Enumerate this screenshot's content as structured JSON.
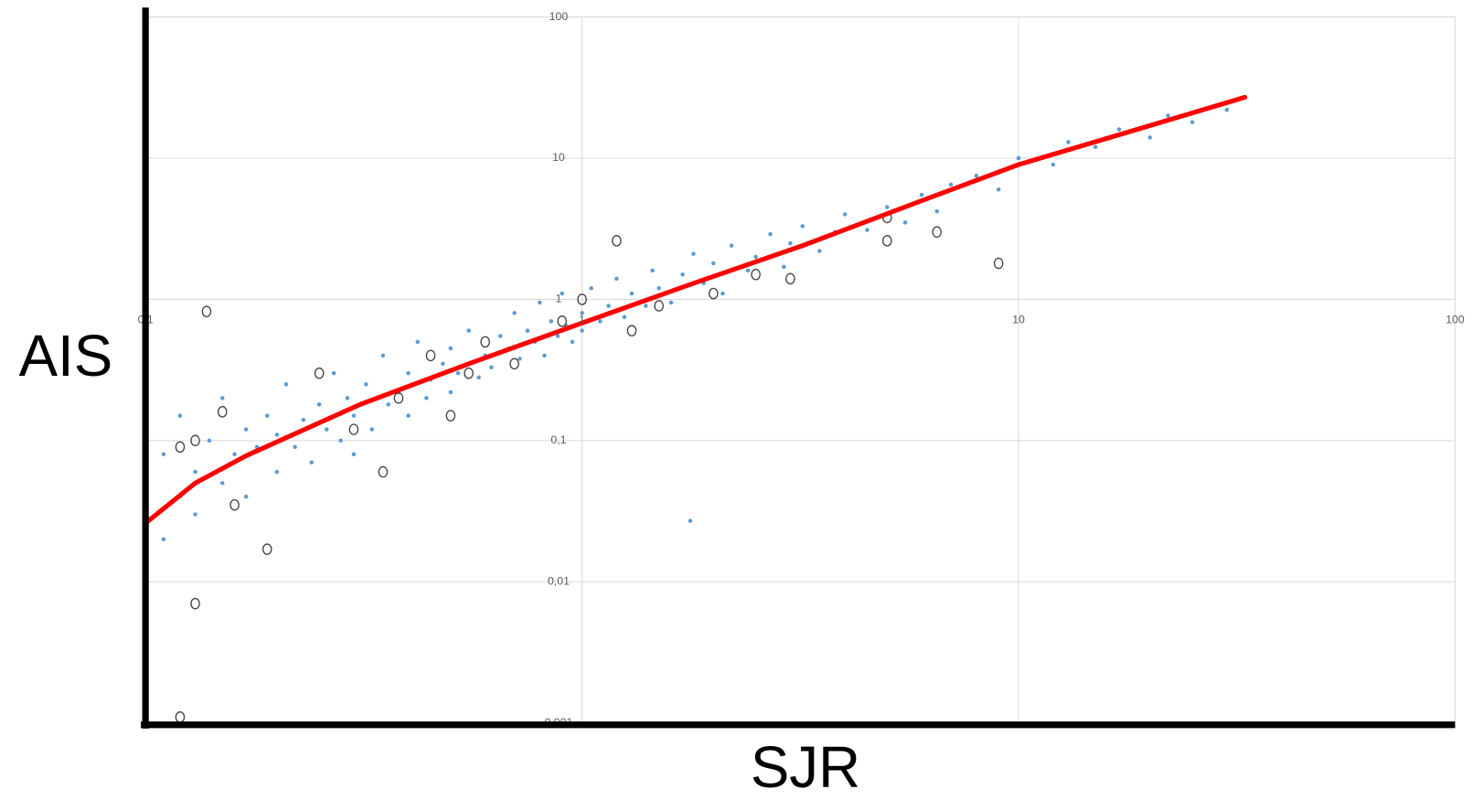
{
  "chart_data": {
    "type": "scatter",
    "x_label": "SJR",
    "y_label": "AIS",
    "xscale": "log",
    "yscale": "log",
    "grid": true,
    "axis_crossing": [
      1,
      1
    ],
    "xlim": [
      0.1,
      100
    ],
    "ylim": [
      0.001,
      100
    ],
    "xticks": [
      {
        "value": 0.1,
        "label": "0,1"
      },
      1,
      10,
      100
    ],
    "yticks": [
      {
        "value": 0.001,
        "label": "0,001"
      },
      {
        "value": 0.01,
        "label": "0,01"
      },
      {
        "value": 0.1,
        "label": "0,1"
      },
      1,
      10,
      100
    ],
    "series": [
      {
        "kind": "points",
        "color": "#5b9bd5",
        "x": [
          0.1,
          0.1,
          0.1,
          0.11,
          0.11,
          0.12,
          0.12,
          0.13,
          0.13,
          0.14,
          0.15,
          0.15,
          0.16,
          0.17,
          0.17,
          0.18,
          0.19,
          0.2,
          0.2,
          0.21,
          0.22,
          0.23,
          0.24,
          0.25,
          0.26,
          0.27,
          0.28,
          0.29,
          0.3,
          0.3,
          0.32,
          0.33,
          0.35,
          0.36,
          0.38,
          0.4,
          0.4,
          0.42,
          0.44,
          0.45,
          0.48,
          0.5,
          0.5,
          0.52,
          0.55,
          0.58,
          0.6,
          0.62,
          0.65,
          0.68,
          0.7,
          0.72,
          0.75,
          0.78,
          0.8,
          0.82,
          0.85,
          0.88,
          0.9,
          0.92,
          0.95,
          1,
          1,
          1.05,
          1.1,
          1.15,
          1.2,
          1.25,
          1.3,
          1.4,
          1.45,
          1.5,
          1.6,
          1.7,
          1.8,
          1.9,
          2,
          2.1,
          2.2,
          2.4,
          2.5,
          2.7,
          2.9,
          3,
          3.2,
          3.5,
          3.8,
          4,
          4.5,
          5,
          5.5,
          6,
          6.5,
          7,
          8,
          9,
          10,
          12,
          13,
          15,
          17,
          20,
          22,
          25,
          30,
          1.77,
          0.1
        ],
        "values": [
          0.03,
          0.012,
          0.05,
          0.02,
          0.08,
          0.04,
          0.15,
          0.03,
          0.06,
          0.1,
          0.05,
          0.2,
          0.08,
          0.12,
          0.04,
          0.09,
          0.15,
          0.06,
          0.11,
          0.25,
          0.09,
          0.14,
          0.07,
          0.18,
          0.12,
          0.3,
          0.1,
          0.2,
          0.15,
          0.08,
          0.25,
          0.12,
          0.4,
          0.18,
          0.22,
          0.15,
          0.3,
          0.5,
          0.2,
          0.27,
          0.35,
          0.22,
          0.45,
          0.3,
          0.6,
          0.28,
          0.4,
          0.33,
          0.55,
          0.45,
          0.8,
          0.38,
          0.6,
          0.5,
          0.95,
          0.4,
          0.7,
          0.55,
          1.1,
          0.65,
          0.5,
          0.8,
          0.6,
          1.2,
          0.7,
          0.9,
          1.4,
          0.75,
          1.1,
          0.9,
          1.6,
          1.2,
          0.95,
          1.5,
          2.1,
          1.3,
          1.8,
          1.1,
          2.4,
          1.6,
          2,
          2.9,
          1.7,
          2.5,
          3.3,
          2.2,
          3,
          4,
          3.1,
          4.5,
          3.5,
          5.5,
          4.2,
          6.5,
          7.5,
          6,
          10,
          9,
          13,
          12,
          16,
          14,
          20,
          18,
          22,
          0.027,
          0.003
        ]
      },
      {
        "kind": "hollow",
        "color": "#404040",
        "x": [
          0.138,
          0.12,
          0.13,
          0.15,
          0.16,
          0.19,
          0.13,
          0.12,
          0.25,
          0.3,
          0.38,
          0.45,
          0.55,
          0.6,
          0.7,
          0.9,
          1,
          1.3,
          1.5,
          2,
          2.5,
          3,
          5,
          6.5,
          9,
          5,
          1.2,
          0.5,
          0.35
        ],
        "values": [
          0.82,
          0.09,
          0.1,
          0.16,
          0.035,
          0.017,
          0.007,
          0.0011,
          0.3,
          0.12,
          0.2,
          0.4,
          0.3,
          0.5,
          0.35,
          0.7,
          1,
          0.6,
          0.9,
          1.1,
          1.5,
          1.4,
          2.6,
          3,
          1.8,
          3.8,
          2.6,
          0.15,
          0.06
        ]
      },
      {
        "kind": "trend",
        "color": "#ff0000",
        "x": [
          0.1,
          0.13,
          0.17,
          0.31,
          0.55,
          1,
          1.8,
          3.2,
          6,
          10,
          20,
          33
        ],
        "values": [
          0.026,
          0.05,
          0.078,
          0.18,
          0.35,
          0.68,
          1.3,
          2.4,
          5,
          9,
          17,
          27
        ]
      }
    ]
  }
}
